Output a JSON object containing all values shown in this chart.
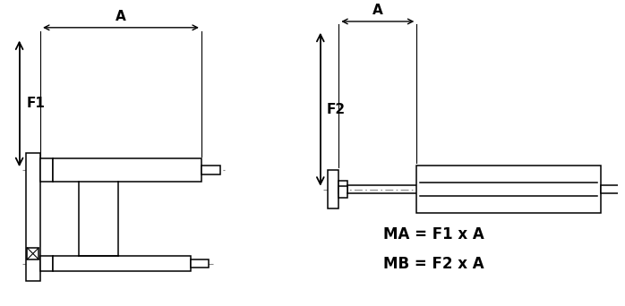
{
  "background_color": "#ffffff",
  "line_color": "#000000",
  "dash_color": "#888888",
  "figsize": [
    6.98,
    3.42
  ],
  "dpi": 100,
  "text_MA": "MA = F1 x A",
  "text_MB": "MB = F2 x A",
  "label_A": "A",
  "label_F1": "F1",
  "label_F2": "F2"
}
